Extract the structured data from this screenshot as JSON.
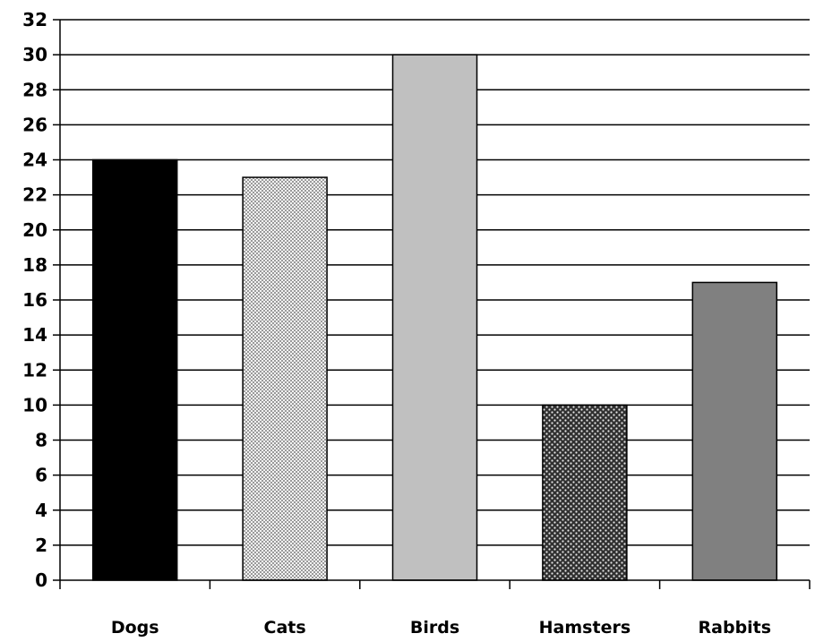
{
  "chart_data": {
    "type": "bar",
    "title": "",
    "xlabel": "",
    "ylabel": "",
    "categories": [
      "Dogs",
      "Cats",
      "Birds",
      "Hamsters",
      "Rabbits"
    ],
    "values": [
      24,
      23,
      30,
      10,
      17
    ],
    "ylim": [
      0,
      32
    ],
    "ytick_step": 2,
    "yticks": [
      "0",
      "2",
      "4",
      "6",
      "8",
      "10",
      "12",
      "14",
      "16",
      "18",
      "20",
      "22",
      "24",
      "26",
      "28",
      "30",
      "32"
    ],
    "grid": true,
    "legend": "none",
    "bar_styles": [
      {
        "fill": "#000000",
        "pattern": "solid"
      },
      {
        "fill": "#d9d9d9",
        "pattern": "fine-checker"
      },
      {
        "fill": "#c0c0c0",
        "pattern": "solid"
      },
      {
        "fill": "#3a3a3a",
        "pattern": "dots"
      },
      {
        "fill": "#808080",
        "pattern": "solid"
      }
    ]
  }
}
